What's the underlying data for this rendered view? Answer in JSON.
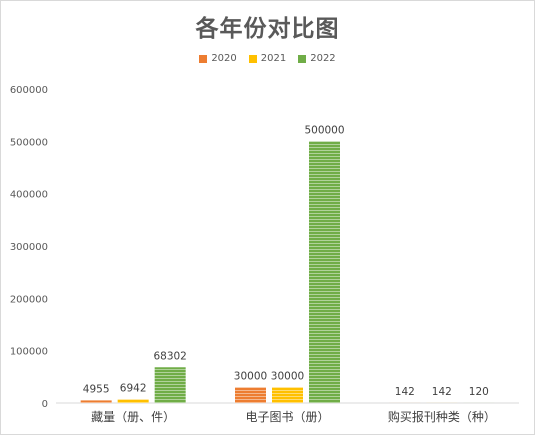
{
  "chart_data": {
    "type": "bar",
    "title": "各年份对比图",
    "categories": [
      "藏量（册、件）",
      "电子图书（册）",
      "购买报刊种类（种）"
    ],
    "series": [
      {
        "name": "2020",
        "color": "#ed7d31",
        "values": [
          4955,
          30000,
          142
        ]
      },
      {
        "name": "2021",
        "color": "#ffc000",
        "values": [
          6942,
          30000,
          142
        ]
      },
      {
        "name": "2022",
        "color": "#70ad47",
        "values": [
          68302,
          500000,
          120
        ]
      }
    ],
    "yticks": [
      "0",
      "100000",
      "200000",
      "300000",
      "400000",
      "500000",
      "600000"
    ],
    "ylim": [
      0,
      600000
    ],
    "xlabel": "",
    "ylabel": "",
    "grid": false,
    "legend_position": "top"
  }
}
